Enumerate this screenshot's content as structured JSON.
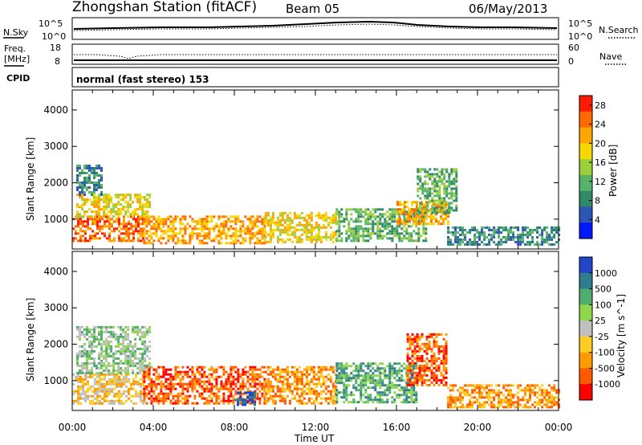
{
  "header": {
    "station": "Zhongshan Station (fitACF)",
    "beam": "Beam 05",
    "date": "06/May/2013"
  },
  "noise_panel": {
    "left_label": "N.Sky",
    "right_label": "N.Search",
    "left_ticks": [
      "10^5",
      "10^0"
    ],
    "right_ticks": [
      "10^5",
      "10^0"
    ]
  },
  "freq_panel": {
    "left_label_line1": "Freq.",
    "left_label_line2": "[MHz]",
    "right_label": "Nave",
    "left_ticks": [
      "18",
      "8"
    ],
    "right_ticks": [
      "60",
      "0"
    ]
  },
  "cpid_panel": {
    "label": "CPID",
    "text": "normal (fast stereo) 153"
  },
  "colors": {
    "power_scale": [
      "#0018ff",
      "#2d55b3",
      "#2f8a6a",
      "#58b36a",
      "#9cd03a",
      "#f5d800",
      "#ffa500",
      "#ff6a00",
      "#ff1a00"
    ],
    "velocity_scale": [
      "#ff0000",
      "#ff5a00",
      "#ff9b00",
      "#ffcc22",
      "#c0c0c0",
      "#8ed64a",
      "#4fae6e",
      "#2f7d8f",
      "#2246c8"
    ]
  },
  "chart_data": [
    {
      "type": "heatmap",
      "name": "power",
      "ylabel": "Slant Range [km]",
      "xlabel": "",
      "ylim": [
        180,
        4550
      ],
      "yticks": [
        "1000",
        "2000",
        "3000",
        "4000"
      ],
      "ytick_values": [
        1000,
        2000,
        3000,
        4000
      ],
      "xlim_hours": [
        0,
        24
      ],
      "colorbar": {
        "label": "Power [dB]",
        "ticks": [
          "4",
          "8",
          "12",
          "16",
          "20",
          "24",
          "28"
        ],
        "tick_values": [
          4,
          8,
          12,
          16,
          20,
          24,
          28
        ],
        "range": [
          0,
          30
        ]
      },
      "echo_regions": [
        {
          "t0": 0.0,
          "t1": 3.5,
          "r0": 400,
          "r1": 1100,
          "level": 27
        },
        {
          "t0": 0.2,
          "t1": 3.8,
          "r0": 1100,
          "r1": 1700,
          "level": 18
        },
        {
          "t0": 3.5,
          "t1": 9.5,
          "r0": 350,
          "r1": 1100,
          "level": 24
        },
        {
          "t0": 9.5,
          "t1": 13.0,
          "r0": 350,
          "r1": 1200,
          "level": 20
        },
        {
          "t0": 13.0,
          "t1": 17.5,
          "r0": 400,
          "r1": 1300,
          "level": 13
        },
        {
          "t0": 16.0,
          "t1": 18.5,
          "r0": 900,
          "r1": 1500,
          "level": 21
        },
        {
          "t0": 17.0,
          "t1": 19.0,
          "r0": 1200,
          "r1": 2400,
          "level": 12
        },
        {
          "t0": 18.5,
          "t1": 24.0,
          "r0": 300,
          "r1": 800,
          "level": 9
        },
        {
          "t0": 0.2,
          "t1": 1.5,
          "r0": 1700,
          "r1": 2500,
          "level": 8
        }
      ]
    },
    {
      "type": "heatmap",
      "name": "velocity",
      "ylabel": "Slant Range [km]",
      "xlabel": "Time UT",
      "ylim": [
        180,
        4550
      ],
      "yticks": [
        "1000",
        "2000",
        "3000",
        "4000"
      ],
      "ytick_values": [
        1000,
        2000,
        3000,
        4000
      ],
      "xticks": [
        "00:00",
        "04:00",
        "08:00",
        "12:00",
        "16:00",
        "20:00",
        "00:00"
      ],
      "xtick_hours": [
        0,
        4,
        8,
        12,
        16,
        20,
        24
      ],
      "xlim_hours": [
        0,
        24
      ],
      "colorbar": {
        "label": "Velocity [m s^-1]",
        "ticks": [
          "1000",
          "500",
          "100",
          "25",
          "-25",
          "-100",
          "-500",
          "-1000"
        ]
      },
      "echo_regions": [
        {
          "t0": 0.0,
          "t1": 3.5,
          "r0": 400,
          "r1": 1200,
          "level": 3
        },
        {
          "t0": 0.2,
          "t1": 3.8,
          "r0": 1200,
          "r1": 2500,
          "level": 5
        },
        {
          "t0": 3.5,
          "t1": 9.5,
          "r0": 350,
          "r1": 1400,
          "level": 1
        },
        {
          "t0": 8.0,
          "t1": 9.0,
          "r0": 350,
          "r1": 700,
          "level": 8
        },
        {
          "t0": 9.5,
          "t1": 13.0,
          "r0": 350,
          "r1": 1400,
          "level": 2
        },
        {
          "t0": 13.0,
          "t1": 17.0,
          "r0": 400,
          "r1": 1500,
          "level": 6
        },
        {
          "t0": 16.5,
          "t1": 18.5,
          "r0": 900,
          "r1": 2300,
          "level": 1
        },
        {
          "t0": 18.5,
          "t1": 24.0,
          "r0": 300,
          "r1": 900,
          "level": 2
        }
      ]
    }
  ]
}
